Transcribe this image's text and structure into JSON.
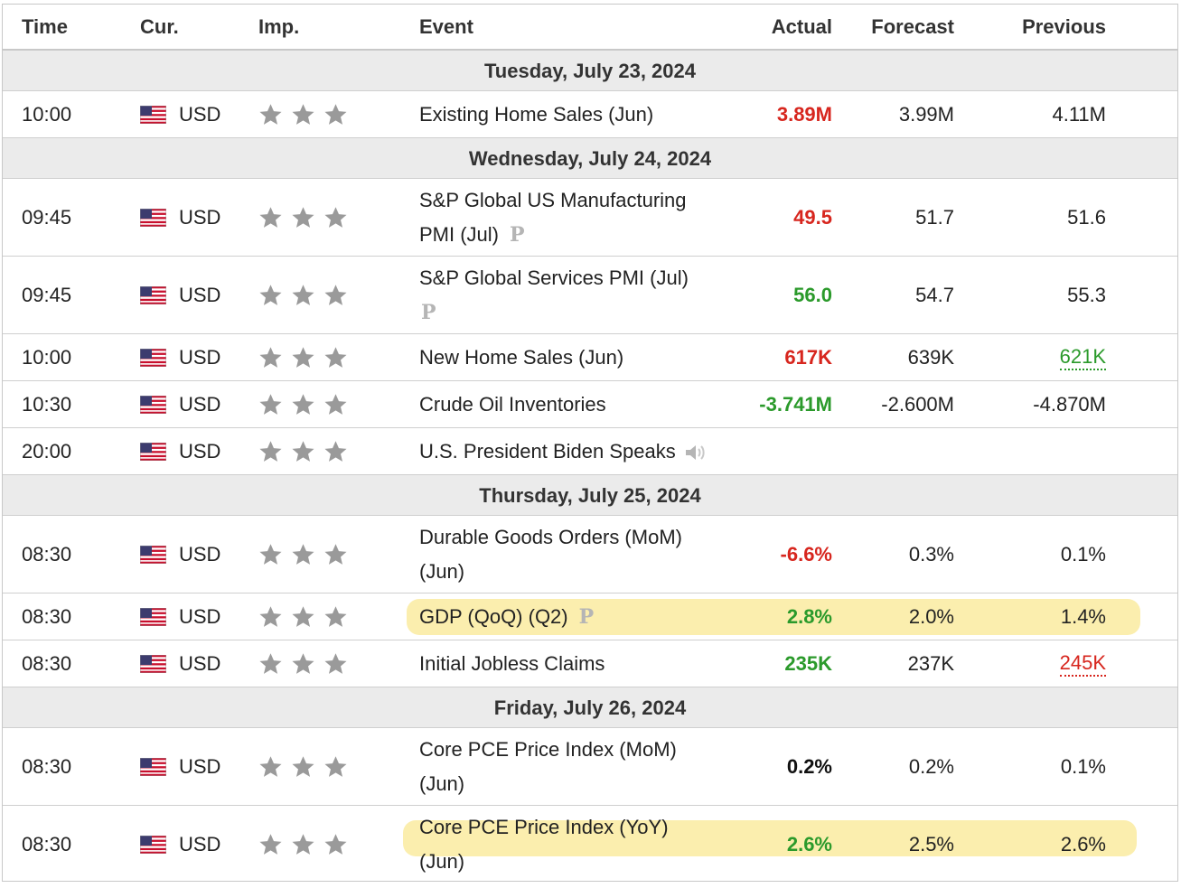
{
  "header": {
    "time": "Time",
    "cur": "Cur.",
    "imp": "Imp.",
    "event": "Event",
    "actual": "Actual",
    "forecast": "Forecast",
    "previous": "Previous"
  },
  "dates": {
    "d1": "Tuesday, July 23, 2024",
    "d2": "Wednesday, July 24, 2024",
    "d3": "Thursday, July 25, 2024",
    "d4": "Friday, July 26, 2024"
  },
  "rows": [
    {
      "time": "10:00",
      "cur": "USD",
      "event": "Existing Home Sales (Jun)",
      "actual": "3.89M",
      "forecast": "3.99M",
      "previous": "4.11M"
    },
    {
      "time": "09:45",
      "cur": "USD",
      "event": "S&P Global US Manufacturing PMI (Jul)",
      "actual": "49.5",
      "forecast": "51.7",
      "previous": "51.6"
    },
    {
      "time": "09:45",
      "cur": "USD",
      "event": "S&P Global Services PMI (Jul)",
      "actual": "56.0",
      "forecast": "54.7",
      "previous": "55.3"
    },
    {
      "time": "10:00",
      "cur": "USD",
      "event": "New Home Sales (Jun)",
      "actual": "617K",
      "forecast": "639K",
      "previous": "621K"
    },
    {
      "time": "10:30",
      "cur": "USD",
      "event": "Crude Oil Inventories",
      "actual": "-3.741M",
      "forecast": "-2.600M",
      "previous": "-4.870M"
    },
    {
      "time": "20:00",
      "cur": "USD",
      "event": "U.S. President Biden Speaks",
      "actual": "",
      "forecast": "",
      "previous": ""
    },
    {
      "time": "08:30",
      "cur": "USD",
      "event": "Durable Goods Orders (MoM) (Jun)",
      "actual": "-6.6%",
      "forecast": "0.3%",
      "previous": "0.1%"
    },
    {
      "time": "08:30",
      "cur": "USD",
      "event": "GDP (QoQ) (Q2)",
      "actual": "2.8%",
      "forecast": "2.0%",
      "previous": "1.4%"
    },
    {
      "time": "08:30",
      "cur": "USD",
      "event": "Initial Jobless Claims",
      "actual": "235K",
      "forecast": "237K",
      "previous": "245K"
    },
    {
      "time": "08:30",
      "cur": "USD",
      "event": "Core PCE Price Index (MoM) (Jun)",
      "actual": "0.2%",
      "forecast": "0.2%",
      "previous": "0.1%"
    },
    {
      "time": "08:30",
      "cur": "USD",
      "event": "Core PCE Price Index (YoY) (Jun)",
      "actual": "2.6%",
      "forecast": "2.5%",
      "previous": "2.6%"
    }
  ],
  "prelim_mark": "P",
  "colors": {
    "negative": "#d7261e",
    "positive": "#2b9a2b",
    "highlight": "#f8e06b",
    "date_row_bg": "#ebebeb"
  }
}
